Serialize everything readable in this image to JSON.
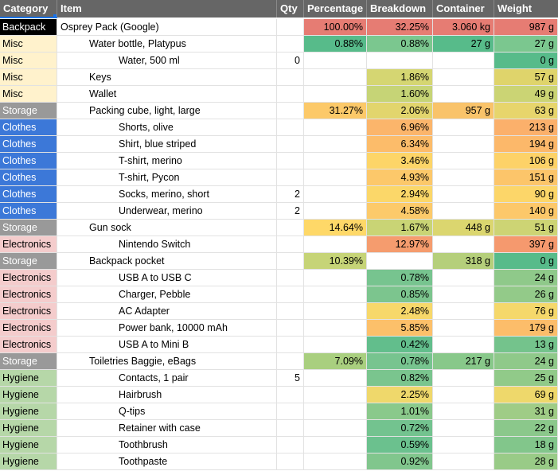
{
  "header": {
    "category": "Category",
    "item": "Item",
    "qty": "Qty",
    "percentage": "Percentage",
    "breakdown": "Breakdown",
    "container": "Container",
    "weight": "Weight"
  },
  "category_colors": {
    "Backpack": {
      "bg": "#000000",
      "fg": "#ffffff"
    },
    "Misc": {
      "bg": "#fff2cc",
      "fg": "#000000"
    },
    "Storage": {
      "bg": "#999999",
      "fg": "#ffffff"
    },
    "Clothes": {
      "bg": "#3c78d8",
      "fg": "#ffffff"
    },
    "Electronics": {
      "bg": "#f4cccc",
      "fg": "#000000"
    },
    "Hygiene": {
      "bg": "#b6d7a8",
      "fg": "#000000"
    }
  },
  "rows": [
    {
      "category": "Backpack",
      "item": "Osprey Pack (Google)",
      "indent": 0,
      "qty": "",
      "percentage": "100.00%",
      "breakdown": "32.25%",
      "container": "3.060 kg",
      "weight": "987 g",
      "colors": {
        "percentage": "#e67c73",
        "breakdown": "#e67c73",
        "container": "#e67c73",
        "weight": "#e67c73"
      }
    },
    {
      "category": "Misc",
      "item": "Water bottle, Platypus",
      "indent": 1,
      "qty": "",
      "percentage": "0.88%",
      "breakdown": "0.88%",
      "container": "27 g",
      "weight": "27 g",
      "colors": {
        "percentage": "#57bb8a",
        "breakdown": "#7bc78f",
        "container": "#57bb8a",
        "weight": "#7bc78f"
      }
    },
    {
      "category": "Misc",
      "item": "Water, 500 ml",
      "indent": 2,
      "qty": "0",
      "percentage": "",
      "breakdown": "",
      "container": "",
      "weight": "0 g",
      "colors": {
        "weight": "#57bb8a"
      }
    },
    {
      "category": "Misc",
      "item": "Keys",
      "indent": 1,
      "qty": "",
      "percentage": "",
      "breakdown": "1.86%",
      "container": "",
      "weight": "57 g",
      "colors": {
        "breakdown": "#d5d672",
        "weight": "#dfd46b"
      }
    },
    {
      "category": "Misc",
      "item": "Wallet",
      "indent": 1,
      "qty": "",
      "percentage": "",
      "breakdown": "1.60%",
      "container": "",
      "weight": "49 g",
      "colors": {
        "breakdown": "#c6d476",
        "weight": "#cbd474"
      }
    },
    {
      "category": "Storage",
      "item": "Packing cube, light, large",
      "indent": 1,
      "qty": "",
      "percentage": "31.27%",
      "breakdown": "2.06%",
      "container": "957 g",
      "weight": "63 g",
      "colors": {
        "percentage": "#fcc969",
        "breakdown": "#e2d56d",
        "container": "#f9c36a",
        "weight": "#e7d56c"
      }
    },
    {
      "category": "Clothes",
      "item": "Shorts, olive",
      "indent": 2,
      "qty": "",
      "percentage": "",
      "breakdown": "6.96%",
      "container": "",
      "weight": "213 g",
      "colors": {
        "breakdown": "#fbb56b",
        "weight": "#fbb06b"
      }
    },
    {
      "category": "Clothes",
      "item": "Shirt, blue striped",
      "indent": 2,
      "qty": "",
      "percentage": "",
      "breakdown": "6.34%",
      "container": "",
      "weight": "194 g",
      "colors": {
        "breakdown": "#fcbc6a",
        "weight": "#fcb86a"
      }
    },
    {
      "category": "Clothes",
      "item": "T-shirt, merino",
      "indent": 2,
      "qty": "",
      "percentage": "",
      "breakdown": "3.46%",
      "container": "",
      "weight": "106 g",
      "colors": {
        "breakdown": "#fdd568",
        "weight": "#fdd268"
      }
    },
    {
      "category": "Clothes",
      "item": "T-shirt, Pycon",
      "indent": 2,
      "qty": "",
      "percentage": "",
      "breakdown": "4.93%",
      "container": "",
      "weight": "151 g",
      "colors": {
        "breakdown": "#fcc86a",
        "weight": "#fcc56a"
      }
    },
    {
      "category": "Clothes",
      "item": "Socks, merino, short",
      "indent": 2,
      "qty": "2",
      "percentage": "",
      "breakdown": "2.94%",
      "container": "",
      "weight": "90 g",
      "colors": {
        "breakdown": "#fbd769",
        "weight": "#fcd669"
      }
    },
    {
      "category": "Clothes",
      "item": "Underwear, merino",
      "indent": 2,
      "qty": "2",
      "percentage": "",
      "breakdown": "4.58%",
      "container": "",
      "weight": "140 g",
      "colors": {
        "breakdown": "#fcca6a",
        "weight": "#fcc86a"
      }
    },
    {
      "category": "Storage",
      "item": "Gun sock",
      "indent": 1,
      "qty": "",
      "percentage": "14.64%",
      "breakdown": "1.67%",
      "container": "448 g",
      "weight": "51 g",
      "colors": {
        "percentage": "#fed868",
        "breakdown": "#c9d475",
        "container": "#dbd66f",
        "weight": "#cdd474"
      }
    },
    {
      "category": "Electronics",
      "item": "Nintendo Switch",
      "indent": 2,
      "qty": "",
      "percentage": "",
      "breakdown": "12.97%",
      "container": "",
      "weight": "397 g",
      "colors": {
        "breakdown": "#f59c6e",
        "weight": "#f5996e"
      }
    },
    {
      "category": "Storage",
      "item": "Backpack pocket",
      "indent": 1,
      "qty": "",
      "percentage": "10.39%",
      "breakdown": "",
      "container": "318 g",
      "weight": "0 g",
      "colors": {
        "percentage": "#c6d477",
        "container": "#b5cf7b",
        "weight": "#57bb8a"
      }
    },
    {
      "category": "Electronics",
      "item": "USB A to USB C",
      "indent": 2,
      "qty": "",
      "percentage": "",
      "breakdown": "0.78%",
      "container": "",
      "weight": "24 g",
      "colors": {
        "breakdown": "#77c48f",
        "weight": "#8fc98a"
      }
    },
    {
      "category": "Electronics",
      "item": "Charger, Pebble",
      "indent": 2,
      "qty": "",
      "percentage": "",
      "breakdown": "0.85%",
      "container": "",
      "weight": "26 g",
      "colors": {
        "breakdown": "#7cc58e",
        "weight": "#93ca89"
      }
    },
    {
      "category": "Electronics",
      "item": "AC Adapter",
      "indent": 2,
      "qty": "",
      "percentage": "",
      "breakdown": "2.48%",
      "container": "",
      "weight": "76 g",
      "colors": {
        "breakdown": "#f7d86a",
        "weight": "#f5d86b"
      }
    },
    {
      "category": "Electronics",
      "item": "Power bank, 10000 mAh",
      "indent": 2,
      "qty": "",
      "percentage": "",
      "breakdown": "5.85%",
      "container": "",
      "weight": "179 g",
      "colors": {
        "breakdown": "#fcc06a",
        "weight": "#fcbd6a"
      }
    },
    {
      "category": "Electronics",
      "item": "USB A to Mini B",
      "indent": 2,
      "qty": "",
      "percentage": "",
      "breakdown": "0.42%",
      "container": "",
      "weight": "13 g",
      "colors": {
        "breakdown": "#62be8c",
        "weight": "#74c38c"
      }
    },
    {
      "category": "Storage",
      "item": "Toiletries Baggie, eBags",
      "indent": 1,
      "qty": "",
      "percentage": "7.09%",
      "breakdown": "0.78%",
      "container": "217 g",
      "weight": "24 g",
      "colors": {
        "percentage": "#a9cf7f",
        "breakdown": "#77c48f",
        "container": "#88c88a",
        "weight": "#8fc98a"
      }
    },
    {
      "category": "Hygiene",
      "item": "Contacts, 1 pair",
      "indent": 2,
      "qty": "5",
      "percentage": "",
      "breakdown": "0.82%",
      "container": "",
      "weight": "25 g",
      "colors": {
        "breakdown": "#7ac58e",
        "weight": "#91ca89"
      }
    },
    {
      "category": "Hygiene",
      "item": "Hairbrush",
      "indent": 2,
      "qty": "",
      "percentage": "",
      "breakdown": "2.25%",
      "container": "",
      "weight": "69 g",
      "colors": {
        "breakdown": "#efd86b",
        "weight": "#eed86b"
      }
    },
    {
      "category": "Hygiene",
      "item": "Q-tips",
      "indent": 2,
      "qty": "",
      "percentage": "",
      "breakdown": "1.01%",
      "container": "",
      "weight": "31 g",
      "colors": {
        "breakdown": "#8ac98b",
        "weight": "#9fcc86"
      }
    },
    {
      "category": "Hygiene",
      "item": "Retainer with case",
      "indent": 2,
      "qty": "",
      "percentage": "",
      "breakdown": "0.72%",
      "container": "",
      "weight": "22 g",
      "colors": {
        "breakdown": "#73c38f",
        "weight": "#8bc88b"
      }
    },
    {
      "category": "Hygiene",
      "item": "Toothbrush",
      "indent": 2,
      "qty": "",
      "percentage": "",
      "breakdown": "0.59%",
      "container": "",
      "weight": "18 g",
      "colors": {
        "breakdown": "#6bc18e",
        "weight": "#82c68b"
      }
    },
    {
      "category": "Hygiene",
      "item": "Toothpaste",
      "indent": 2,
      "qty": "",
      "percentage": "",
      "breakdown": "0.92%",
      "container": "",
      "weight": "28 g",
      "colors": {
        "breakdown": "#81c68d",
        "weight": "#99cb87"
      }
    }
  ]
}
